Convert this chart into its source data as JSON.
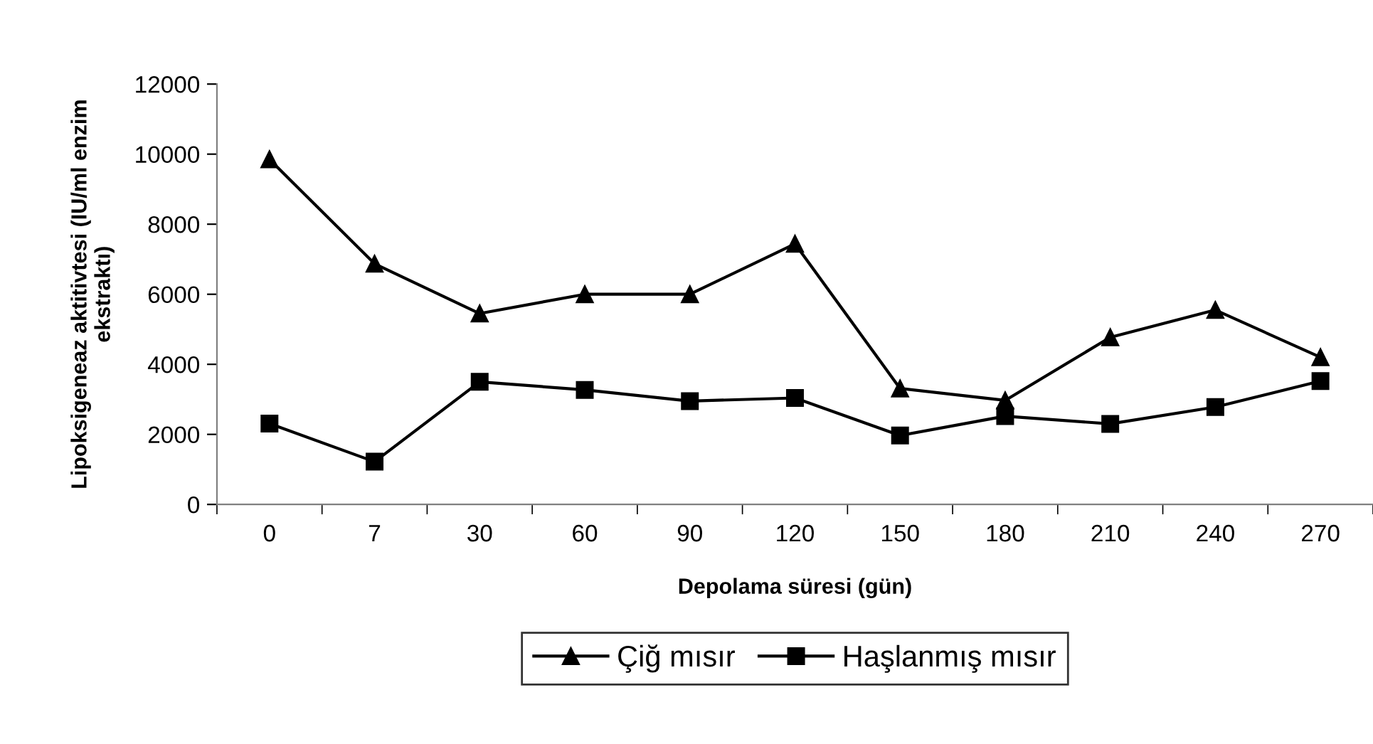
{
  "chart_data": {
    "type": "line",
    "xlabel": "Depolama süresi (gün)",
    "ylabel": "Lipoksigeneaz aktitivtesi (IU/ml enzim\nekstraktı)",
    "categories": [
      "0",
      "7",
      "30",
      "60",
      "90",
      "120",
      "150",
      "180",
      "210",
      "240",
      "270"
    ],
    "series": [
      {
        "name": "Çiğ mısır",
        "color": "#000000",
        "marker": "triangle",
        "values": [
          9850,
          6870,
          5450,
          6000,
          6000,
          7440,
          3310,
          2970,
          4770,
          5550,
          4200
        ]
      },
      {
        "name": "Haşlanmış mısır",
        "color": "#000000",
        "marker": "square",
        "values": [
          2310,
          1220,
          3500,
          3270,
          2950,
          3040,
          1970,
          2520,
          2300,
          2780,
          3520
        ]
      }
    ],
    "ylim": [
      0,
      12000
    ],
    "yticks": [
      0,
      2000,
      4000,
      6000,
      8000,
      10000,
      12000
    ],
    "grid": false,
    "legend": "bottom",
    "line_style": "solid"
  }
}
